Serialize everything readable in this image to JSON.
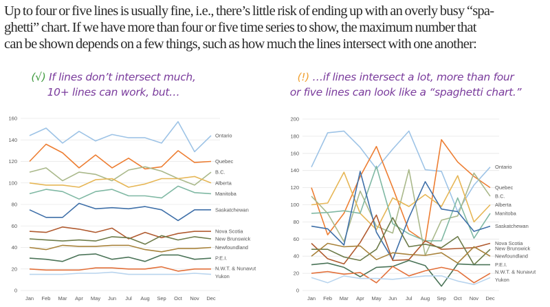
{
  "paragraph": {
    "lines": [
      "Up to four or five lines is usually fine, i.e., there’s little risk of ending up with an overly busy “spa-",
      "ghetti” chart. If we have more than four or five time series to show, the maximum number  that",
      "can be shown depends on a few things, such as how much the lines intersect with one another:"
    ]
  },
  "captions": {
    "left": {
      "mark": "(√)",
      "line1": " If lines don’t intersect much,",
      "line2": "10+ lines can work, but…"
    },
    "right": {
      "mark": "(!)",
      "line1": " …if lines intersect a lot, more than four",
      "line2": "or five lines can look like a “spaghetti chart.”"
    }
  },
  "chart_data": [
    {
      "type": "line",
      "categories": [
        "Jan",
        "Feb",
        "Mar",
        "Apr",
        "May",
        "Jun",
        "Jul",
        "Aug",
        "Sep",
        "Oct",
        "Nov",
        "Dec"
      ],
      "ylim": [
        0,
        160
      ],
      "yticks": [
        0,
        20,
        40,
        60,
        80,
        100,
        120,
        140,
        160
      ],
      "grid": true,
      "legend": "direct labels at right end",
      "series": [
        {
          "name": "Ontario",
          "color": "#9dc3e6",
          "values": [
            144,
            151,
            137,
            148,
            139,
            145,
            142,
            142,
            137,
            157,
            129,
            144
          ]
        },
        {
          "name": "Quebec",
          "color": "#ed7d31",
          "values": [
            120,
            136,
            128,
            114,
            126,
            114,
            123,
            113,
            115,
            130,
            119,
            120
          ]
        },
        {
          "name": "B.C.",
          "color": "#a9b88a",
          "values": [
            110,
            114,
            102,
            110,
            108,
            102,
            112,
            115,
            111,
            104,
            98,
            110
          ]
        },
        {
          "name": "Alberta",
          "color": "#e6b655",
          "values": [
            100,
            98,
            98,
            96,
            103,
            104,
            96,
            99,
            104,
            104,
            106,
            100
          ]
        },
        {
          "name": "Manitoba",
          "color": "#7fb8a3",
          "values": [
            90,
            94,
            92,
            85,
            92,
            94,
            88,
            88,
            86,
            97,
            91,
            90
          ]
        },
        {
          "name": "Saskatchewan",
          "color": "#3e6fa8",
          "values": [
            75,
            68,
            68,
            81,
            76,
            77,
            76,
            78,
            75,
            65,
            75,
            75
          ]
        },
        {
          "name": "Nova Scotia",
          "color": "#b05a2f",
          "values": [
            55,
            54,
            59,
            57,
            54,
            58,
            48,
            54,
            49,
            53,
            55,
            55
          ]
        },
        {
          "name": "New Brunswick",
          "color": "#6b7a48",
          "values": [
            48,
            47,
            46,
            47,
            46,
            50,
            49,
            43,
            51,
            47,
            50,
            48
          ]
        },
        {
          "name": "Newfoundland",
          "color": "#a8823a",
          "values": [
            40,
            38,
            42,
            41,
            41,
            42,
            42,
            38,
            36,
            39,
            39,
            40
          ]
        },
        {
          "name": "P.E.I.",
          "color": "#4a7357",
          "values": [
            30,
            29,
            27,
            33,
            34,
            29,
            31,
            27,
            33,
            33,
            29,
            30
          ]
        },
        {
          "name": "N.W.T. & Nunavut",
          "color": "#e2703a",
          "values": [
            20,
            19,
            19,
            19,
            21,
            21,
            20,
            20,
            22,
            18,
            20,
            20
          ]
        },
        {
          "name": "Yukon",
          "color": "#b8d4ee",
          "values": [
            15,
            15,
            15,
            16,
            16,
            17,
            15,
            15,
            15,
            15,
            16,
            15
          ]
        }
      ]
    },
    {
      "type": "line",
      "categories": [
        "Jan",
        "Feb",
        "Mar",
        "Apr",
        "May",
        "Jun",
        "Jul",
        "Aug",
        "Sep",
        "Oct",
        "Nov",
        "Dec"
      ],
      "ylim": [
        0,
        200
      ],
      "yticks": [
        0,
        20,
        40,
        60,
        80,
        100,
        120,
        140,
        160,
        180,
        200
      ],
      "grid": true,
      "legend": "direct labels at right end",
      "series": [
        {
          "name": "Ontario",
          "color": "#9dc3e6",
          "values": [
            144,
            184,
            186,
            167,
            142,
            165,
            186,
            141,
            139,
            92,
            123,
            144
          ]
        },
        {
          "name": "Quebec",
          "color": "#ed7d31",
          "values": [
            120,
            65,
            90,
            133,
            168,
            120,
            70,
            57,
            176,
            150,
            133,
            120
          ]
        },
        {
          "name": "B.C.",
          "color": "#a9b88a",
          "values": [
            110,
            90,
            57,
            116,
            75,
            67,
            141,
            41,
            82,
            87,
            137,
            110
          ]
        },
        {
          "name": "Alberta",
          "color": "#e6b655",
          "values": [
            100,
            102,
            138,
            90,
            71,
            108,
            98,
            112,
            98,
            134,
            80,
            100
          ]
        },
        {
          "name": "Manitoba",
          "color": "#7fb8a3",
          "values": [
            90,
            91,
            93,
            90,
            145,
            78,
            66,
            58,
            58,
            108,
            61,
            90
          ]
        },
        {
          "name": "Saskatchewan",
          "color": "#3e6fa8",
          "values": [
            75,
            72,
            53,
            139,
            68,
            36,
            85,
            127,
            95,
            92,
            69,
            75
          ]
        },
        {
          "name": "Nova Scotia",
          "color": "#b05a2f",
          "values": [
            55,
            37,
            31,
            56,
            88,
            35,
            36,
            58,
            48,
            49,
            50,
            55
          ]
        },
        {
          "name": "New Brunswick",
          "color": "#6b7a48",
          "values": [
            48,
            48,
            39,
            35,
            48,
            85,
            51,
            54,
            50,
            63,
            30,
            48
          ]
        },
        {
          "name": "Newfoundland",
          "color": "#a8823a",
          "values": [
            40,
            55,
            51,
            52,
            36,
            44,
            42,
            41,
            44,
            32,
            51,
            40
          ]
        },
        {
          "name": "P.E.I.",
          "color": "#4a7357",
          "values": [
            30,
            32,
            27,
            16,
            27,
            28,
            35,
            29,
            5,
            31,
            30,
            30
          ]
        },
        {
          "name": "N.W.T. & Nunavut",
          "color": "#e2703a",
          "values": [
            20,
            22,
            19,
            21,
            9,
            28,
            17,
            23,
            27,
            23,
            9,
            20
          ]
        },
        {
          "name": "Yukon",
          "color": "#b8d4ee",
          "values": [
            15,
            9,
            17,
            14,
            14,
            13,
            15,
            17,
            17,
            11,
            7,
            15
          ]
        }
      ]
    }
  ]
}
